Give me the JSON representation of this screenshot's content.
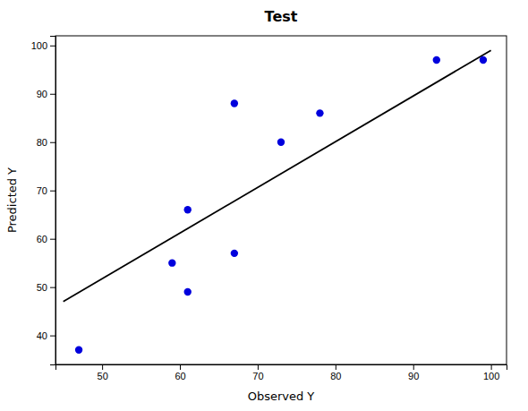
{
  "chart_data": {
    "type": "scatter",
    "title": "Test",
    "xlabel": "Observed Y",
    "ylabel": "Predicted Y",
    "series": [
      {
        "type": "scatter",
        "color": "#0000dd",
        "x": [
          47,
          59,
          61,
          61,
          67,
          67,
          73,
          78,
          93,
          99
        ],
        "values": [
          37,
          55,
          66,
          49,
          88,
          57,
          80,
          86,
          97,
          97
        ]
      },
      {
        "type": "line",
        "color": "#000000",
        "x": [
          45,
          100
        ],
        "values": [
          47,
          99
        ]
      }
    ],
    "xlim": [
      44,
      102
    ],
    "ylim": [
      34,
      102
    ],
    "xticks": [
      50,
      60,
      70,
      80,
      90,
      100
    ],
    "yticks": [
      40,
      50,
      60,
      70,
      80,
      90,
      100
    ]
  }
}
